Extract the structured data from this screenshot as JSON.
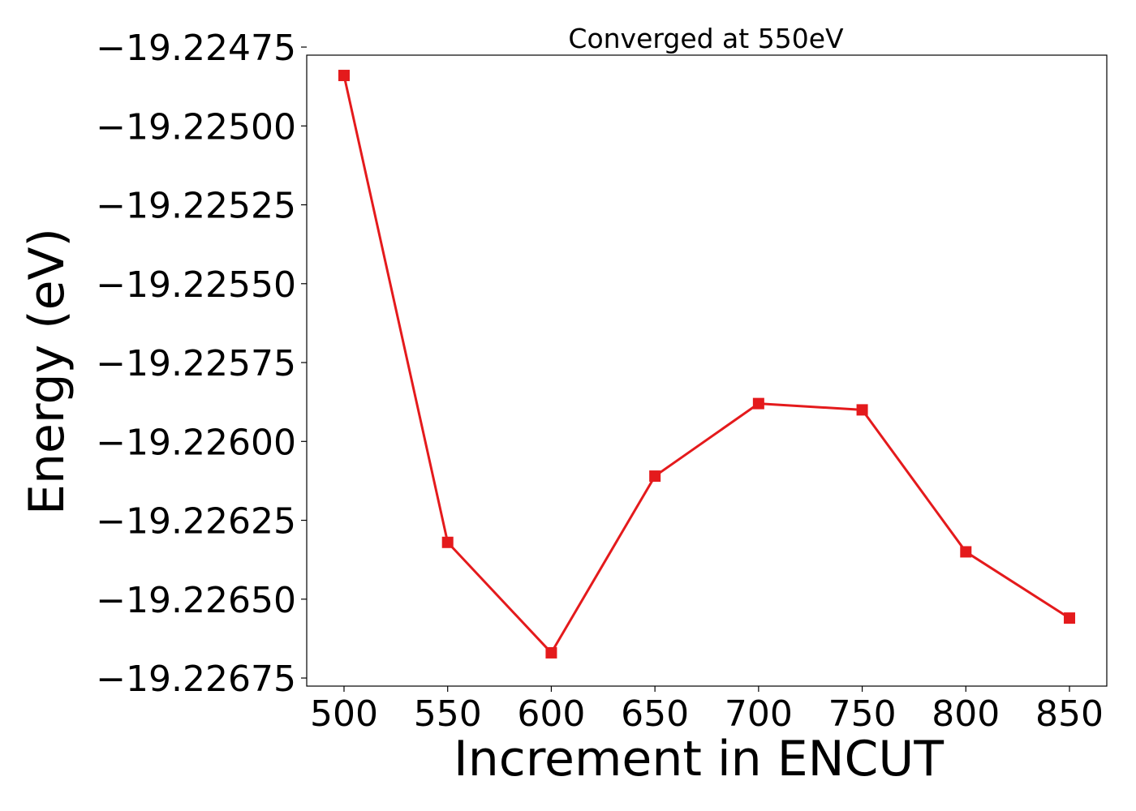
{
  "chart_data": {
    "type": "line",
    "title": "Converged at 550eV",
    "xlabel": "Increment in ENCUT",
    "ylabel": "Energy (eV)",
    "x": [
      500,
      550,
      600,
      650,
      700,
      750,
      800,
      850
    ],
    "series": [
      {
        "values": [
          -19.22484,
          -19.22632,
          -19.22667,
          -19.22611,
          -19.22588,
          -19.2259,
          -19.22635,
          -19.22656
        ],
        "color": "#e41a1c",
        "marker": "square"
      }
    ],
    "xticks": [
      500,
      550,
      600,
      650,
      700,
      750,
      800,
      850
    ],
    "xtick_labels": [
      "500",
      "550",
      "600",
      "650",
      "700",
      "750",
      "800",
      "850"
    ],
    "yticks": [
      -19.22475,
      -19.225,
      -19.22525,
      -19.2255,
      -19.22575,
      -19.226,
      -19.22625,
      -19.2265,
      -19.22675
    ],
    "ytick_labels": [
      "−19.22475",
      "−19.22500",
      "−19.22525",
      "−19.22550",
      "−19.22575",
      "−19.22600",
      "−19.22625",
      "−19.22650",
      "−19.22675"
    ],
    "xlim": [
      482,
      868
    ],
    "ylim": [
      -19.2267756,
      -19.2247756
    ],
    "grid": false,
    "legend": "none"
  }
}
